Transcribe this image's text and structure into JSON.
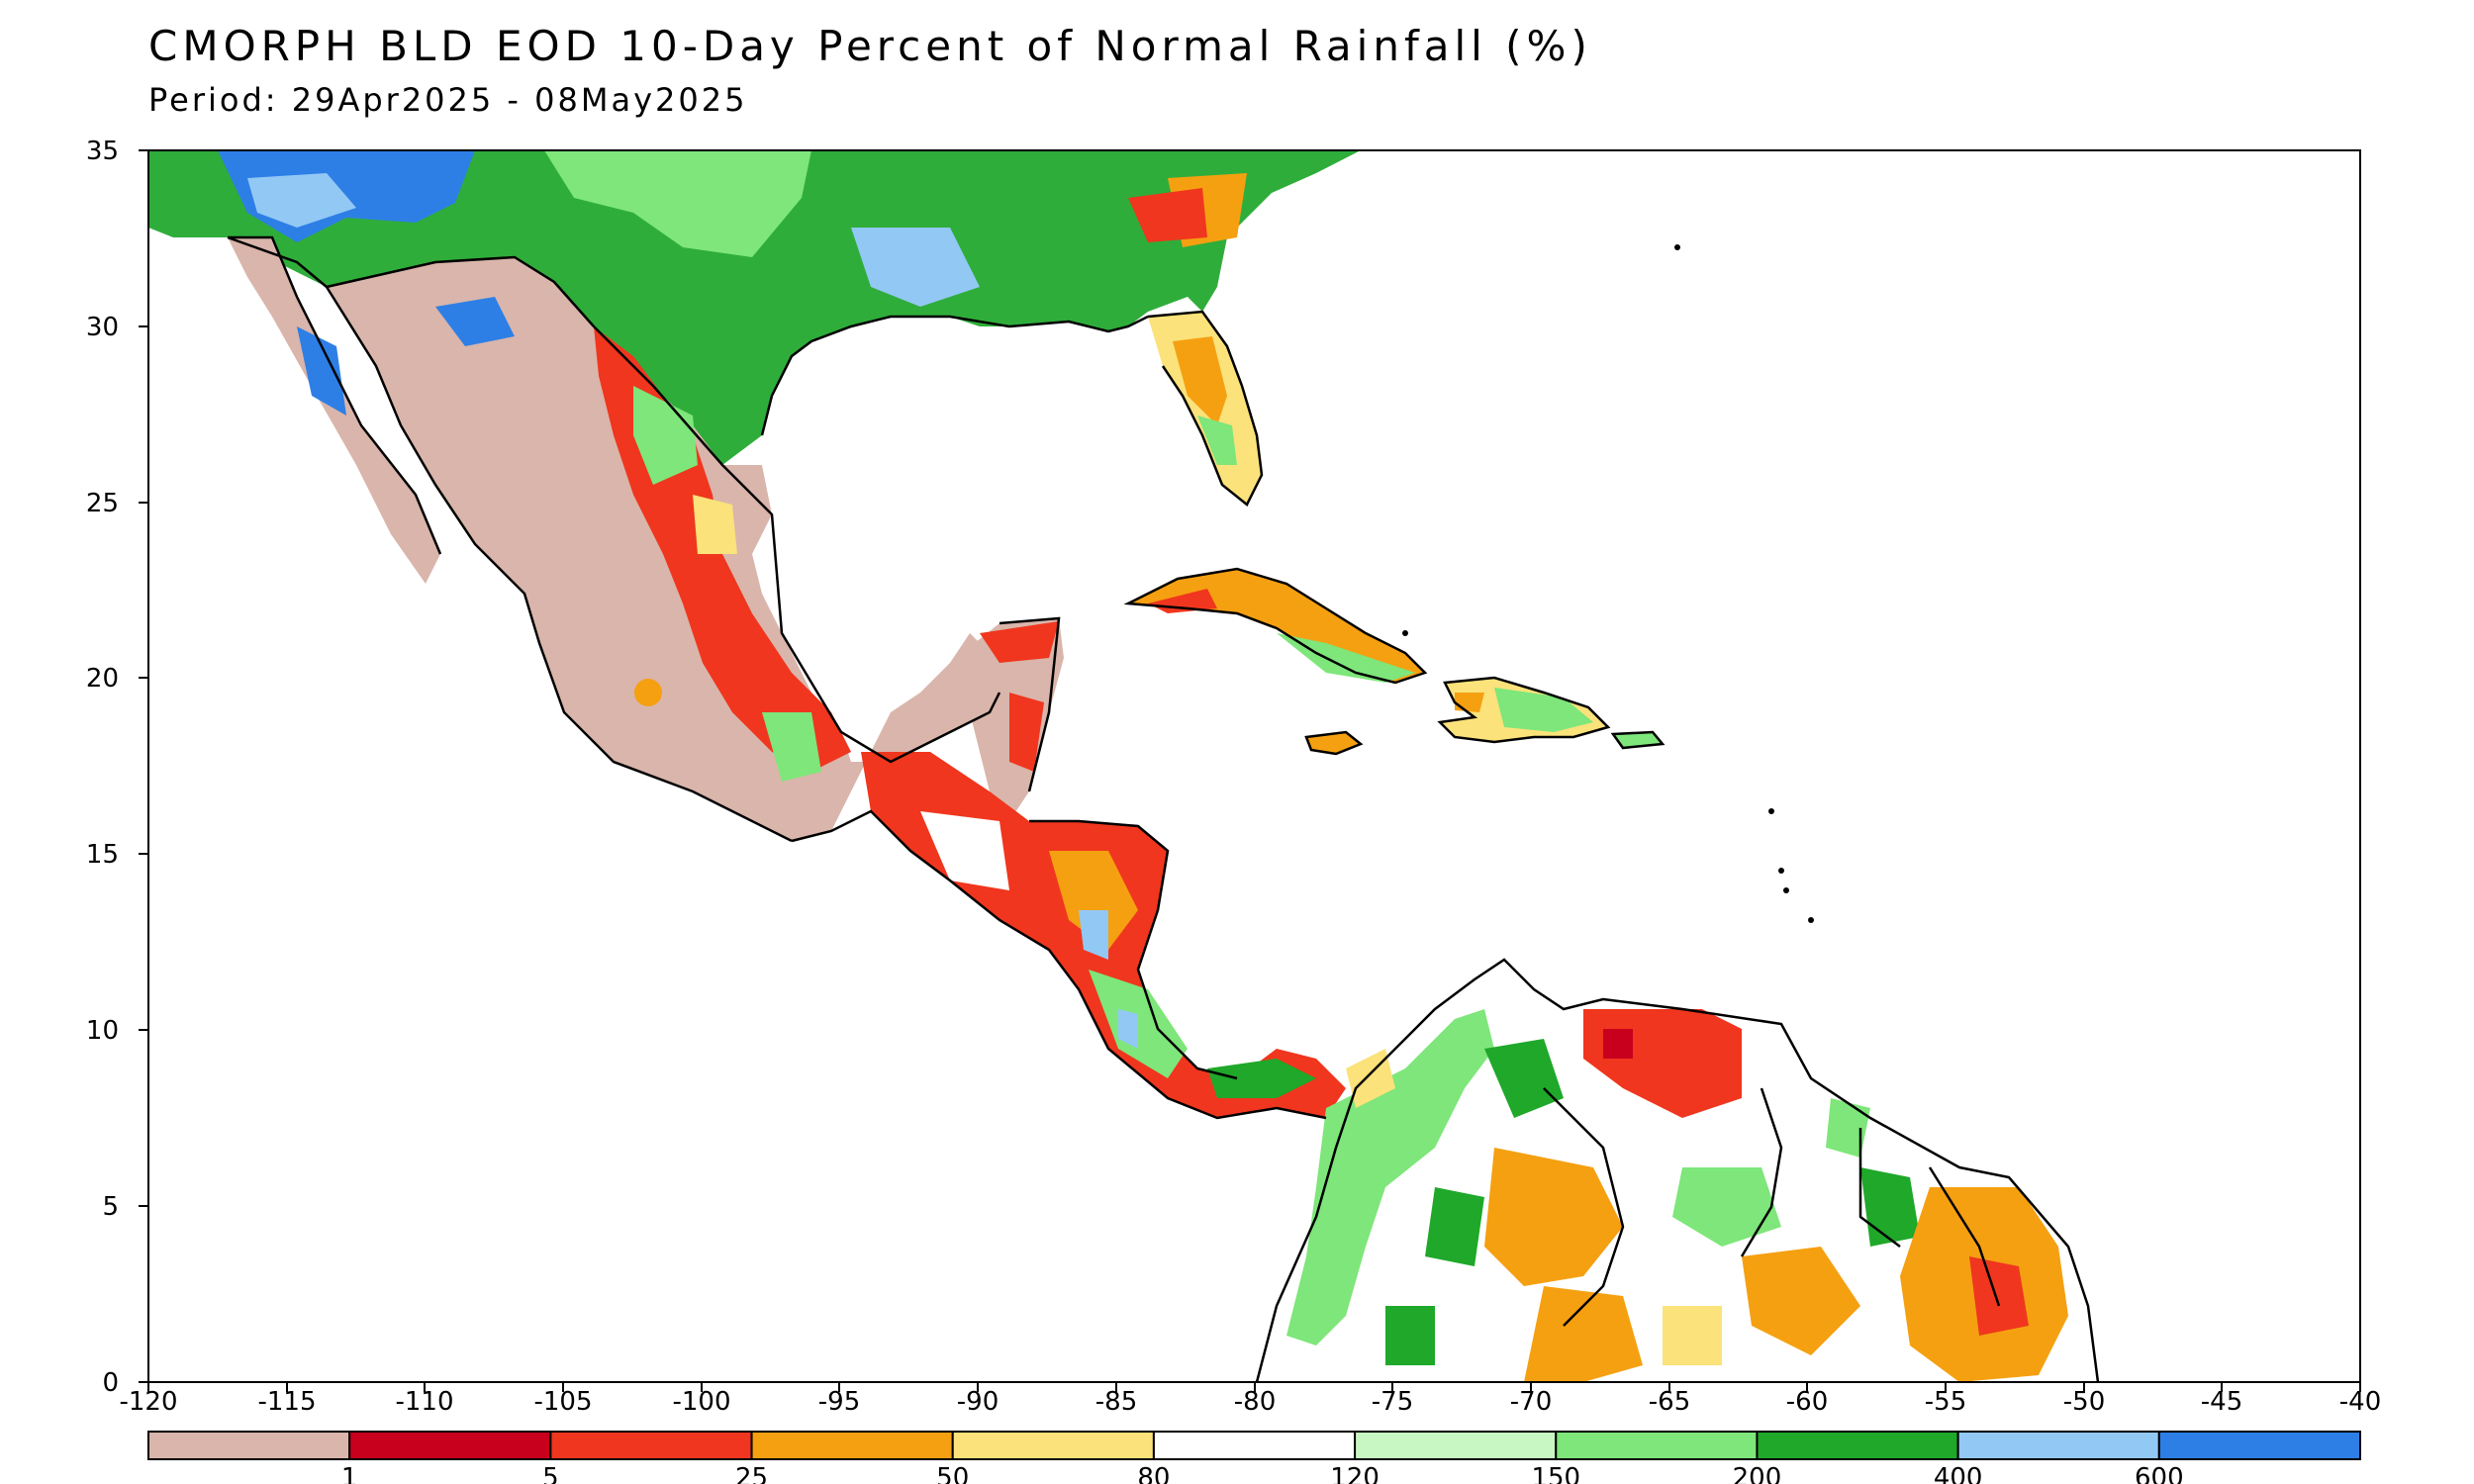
{
  "title": "CMORPH BLD EOD 10-Day Percent of Normal Rainfall (%)",
  "period": "Period: 29Apr2025 - 08May2025",
  "lat_ticks": [
    "35",
    "30",
    "25",
    "20",
    "15",
    "10",
    "5",
    "0"
  ],
  "lon_ticks": [
    "-120",
    "-115",
    "-110",
    "-105",
    "-100",
    "-95",
    "-90",
    "-85",
    "-80",
    "-75",
    "-70",
    "-65",
    "-60",
    "-55",
    "-50",
    "-45",
    "-40"
  ],
  "legend": {
    "colors": [
      "#d9b5ab",
      "#c8001e",
      "#f0361e",
      "#f5a011",
      "#fbe27a",
      "#ffffff",
      "#c9f7c3",
      "#7ee67a",
      "#1fa82a",
      "#92c8f4",
      "#2d7fe6"
    ],
    "labels": [
      "1",
      "5",
      "25",
      "50",
      "80",
      "120",
      "150",
      "200",
      "400",
      "600"
    ]
  }
}
